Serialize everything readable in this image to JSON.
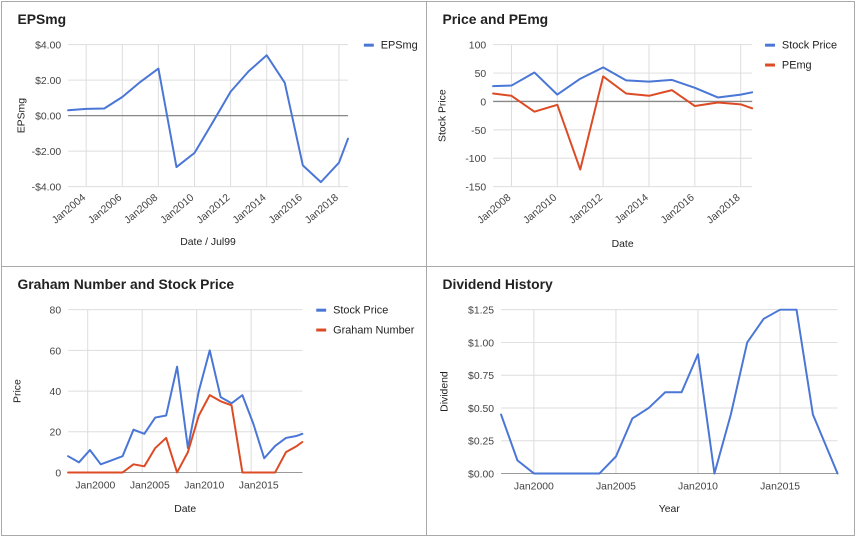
{
  "colors": {
    "blue": "#4a76d6",
    "red": "#dc4b24",
    "grid": "#dddddd",
    "baseline": "#888888"
  },
  "chart_data": [
    {
      "id": "eps",
      "type": "line",
      "title": "EPSmg",
      "xlabel": "Date / Jul99",
      "ylabel": "EPSmg",
      "xlim": [
        2003.0,
        2018.5
      ],
      "ylim": [
        -4,
        4
      ],
      "yticks": [
        4,
        2,
        0,
        -2,
        -4
      ],
      "ytick_labels": [
        "$4.00",
        "$2.00",
        "$0.00",
        "-$2.00",
        "-$4.00"
      ],
      "xticks": [
        2004,
        2006,
        2008,
        2010,
        2012,
        2014,
        2016,
        2018
      ],
      "xtick_labels": [
        "Jan2004",
        "Jan2006",
        "Jan2008",
        "Jan2010",
        "Jan2012",
        "Jan2014",
        "Jan2016",
        "Jan2018"
      ],
      "xtick_rotate": true,
      "baseline": 0,
      "legend": "right",
      "series": [
        {
          "name": "EPSmg",
          "color": "#4a76d6",
          "x": [
            2003.0,
            2004.0,
            2005.0,
            2006.0,
            2007.0,
            2008.0,
            2009.0,
            2010.0,
            2011.0,
            2012.0,
            2013.0,
            2014.0,
            2015.0,
            2016.0,
            2017.0,
            2018.0,
            2018.5
          ],
          "y": [
            0.3,
            0.38,
            0.4,
            1.05,
            1.9,
            2.65,
            -2.9,
            -2.1,
            -0.4,
            1.35,
            2.5,
            3.4,
            1.85,
            -2.8,
            -3.75,
            -2.65,
            -1.3
          ]
        }
      ]
    },
    {
      "id": "pe",
      "type": "line",
      "title": "Price and PEmg",
      "xlabel": "Date",
      "ylabel": "Stock Price",
      "xlim": [
        2007.2,
        2018.5
      ],
      "ylim": [
        -150,
        100
      ],
      "yticks": [
        100,
        50,
        0,
        -50,
        -100,
        -150
      ],
      "ytick_labels": [
        "100",
        "50",
        "0",
        "-50",
        "-100",
        "-150"
      ],
      "xticks": [
        2008,
        2010,
        2012,
        2014,
        2016,
        2018
      ],
      "xtick_labels": [
        "Jan2008",
        "Jan2010",
        "Jan2012",
        "Jan2014",
        "Jan2016",
        "Jan2018"
      ],
      "xtick_rotate": true,
      "baseline": 0,
      "legend": "right",
      "series": [
        {
          "name": "Stock Price",
          "color": "#4a76d6",
          "x": [
            2007.2,
            2008.0,
            2009.0,
            2010.0,
            2011.0,
            2012.0,
            2013.0,
            2014.0,
            2015.0,
            2016.0,
            2017.0,
            2018.0,
            2018.5
          ],
          "y": [
            27,
            28,
            51,
            12,
            40,
            60,
            37,
            35,
            38,
            24,
            7,
            12,
            16
          ]
        },
        {
          "name": "PEmg",
          "color": "#dc4b24",
          "x": [
            2007.2,
            2008.0,
            2009.0,
            2010.0,
            2011.0,
            2012.0,
            2013.0,
            2014.0,
            2015.0,
            2016.0,
            2017.0,
            2018.0,
            2018.5
          ],
          "y": [
            14,
            10,
            -18,
            -6,
            -120,
            44,
            14,
            10,
            20,
            -8,
            -2,
            -5,
            -12
          ]
        }
      ]
    },
    {
      "id": "graham",
      "type": "line",
      "title": "Graham Number and Stock Price",
      "xlabel": "Date",
      "ylabel": "Price",
      "xlim": [
        1997.5,
        2019.0
      ],
      "ylim": [
        0,
        80
      ],
      "yticks": [
        80,
        60,
        40,
        20,
        0
      ],
      "ytick_labels": [
        "80",
        "60",
        "40",
        "20",
        "0"
      ],
      "xticks": [
        2000,
        2005,
        2010,
        2015
      ],
      "xtick_labels": [
        "Jan2000",
        "Jan2005",
        "Jan2010",
        "Jan2015"
      ],
      "xtick_rotate": false,
      "grid_x": [
        1999.3,
        2004.3,
        2009.3,
        2014.3
      ],
      "baseline": null,
      "legend": "right",
      "series": [
        {
          "name": "Stock Price",
          "color": "#4a76d6",
          "x": [
            1997.5,
            1998.5,
            1999.5,
            2000.5,
            2001.5,
            2002.5,
            2003.5,
            2004.5,
            2005.5,
            2006.5,
            2007.5,
            2008.5,
            2009.5,
            2010.5,
            2011.5,
            2012.5,
            2013.5,
            2014.5,
            2015.5,
            2016.5,
            2017.5,
            2018.5,
            2019.0
          ],
          "y": [
            8,
            5,
            11,
            4,
            6,
            8,
            21,
            19,
            27,
            28,
            52,
            12,
            40,
            60,
            37,
            34,
            38,
            24,
            7,
            13,
            17,
            18,
            19
          ]
        },
        {
          "name": "Graham Number",
          "color": "#dc4b24",
          "x": [
            1997.5,
            1998.5,
            1999.5,
            2000.5,
            2001.5,
            2002.5,
            2003.5,
            2004.5,
            2005.5,
            2006.5,
            2007.5,
            2008.5,
            2009.5,
            2010.5,
            2011.5,
            2012.5,
            2013.5,
            2014.5,
            2015.5,
            2016.5,
            2017.5,
            2018.5,
            2019.0
          ],
          "y": [
            0,
            0,
            0,
            0,
            0,
            0,
            4,
            3,
            12,
            17,
            0,
            10,
            28,
            38,
            35,
            33,
            0,
            0,
            0,
            0,
            10,
            13,
            15
          ]
        }
      ]
    },
    {
      "id": "dividend",
      "type": "line",
      "title": "Dividend History",
      "xlabel": "Year",
      "ylabel": "Dividend",
      "xlim": [
        1998.0,
        2018.5
      ],
      "ylim": [
        0,
        1.25
      ],
      "yticks": [
        1.25,
        1.0,
        0.75,
        0.5,
        0.25,
        0
      ],
      "ytick_labels": [
        "$1.25",
        "$1.00",
        "$0.75",
        "$0.50",
        "$0.25",
        "$0.00"
      ],
      "xticks": [
        2000,
        2005,
        2010,
        2015
      ],
      "xtick_labels": [
        "Jan2000",
        "Jan2005",
        "Jan2010",
        "Jan2015"
      ],
      "xtick_rotate": false,
      "grid_x": [
        2000,
        2005,
        2010,
        2015
      ],
      "baseline": null,
      "legend": "none",
      "series": [
        {
          "name": "Dividend",
          "color": "#4a76d6",
          "x": [
            1998.0,
            1999.0,
            2000.0,
            2001.0,
            2002.0,
            2003.0,
            2004.0,
            2005.0,
            2006.0,
            2007.0,
            2008.0,
            2009.0,
            2010.0,
            2011.0,
            2012.0,
            2013.0,
            2014.0,
            2015.0,
            2016.0,
            2017.0,
            2018.5
          ],
          "y": [
            0.45,
            0.1,
            0.0,
            0.0,
            0.0,
            0.0,
            0.0,
            0.13,
            0.42,
            0.5,
            0.62,
            0.62,
            0.91,
            0.0,
            0.45,
            1.0,
            1.18,
            1.25,
            1.25,
            0.45,
            0.0
          ]
        }
      ]
    }
  ]
}
